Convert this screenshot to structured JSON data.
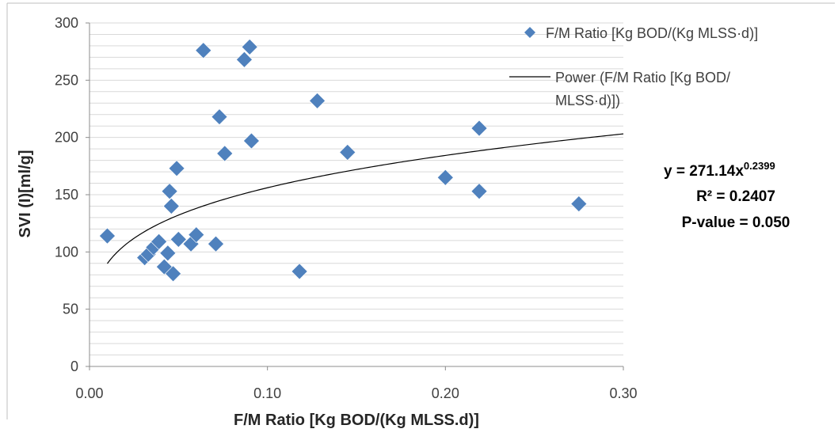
{
  "chart_data": {
    "type": "scatter",
    "xlabel": "F/M Ratio [Kg BOD/(Kg MLSS.d)]",
    "ylabel": "SVI (I)[ml/g]",
    "xlim": [
      0,
      0.3
    ],
    "ylim": [
      0,
      300
    ],
    "x_ticks": [
      "0.00",
      "0.10",
      "0.20",
      "0.30"
    ],
    "y_ticks": [
      "0",
      "50",
      "100",
      "150",
      "200",
      "250",
      "300"
    ],
    "y_minor_step": 10,
    "grid": "horizontal",
    "legend_position": "top-right",
    "series": [
      {
        "name": "F/M Ratio [Kg BOD/(Kg MLSS·d)]",
        "marker": "diamond",
        "color": "#4f81bd",
        "points": [
          [
            0.01,
            114
          ],
          [
            0.031,
            95
          ],
          [
            0.033,
            98
          ],
          [
            0.036,
            104
          ],
          [
            0.039,
            109
          ],
          [
            0.042,
            87
          ],
          [
            0.044,
            99
          ],
          [
            0.045,
            153
          ],
          [
            0.046,
            140
          ],
          [
            0.047,
            81
          ],
          [
            0.049,
            173
          ],
          [
            0.05,
            111
          ],
          [
            0.057,
            107
          ],
          [
            0.06,
            115
          ],
          [
            0.064,
            276
          ],
          [
            0.071,
            107
          ],
          [
            0.073,
            218
          ],
          [
            0.076,
            186
          ],
          [
            0.087,
            268
          ],
          [
            0.09,
            279
          ],
          [
            0.091,
            197
          ],
          [
            0.118,
            83
          ],
          [
            0.128,
            232
          ],
          [
            0.145,
            187
          ],
          [
            0.2,
            165
          ],
          [
            0.219,
            153
          ],
          [
            0.219,
            208
          ],
          [
            0.275,
            142
          ]
        ]
      },
      {
        "name": "Power (F/M Ratio [Kg BOD/(Kg MLSS·d)])",
        "type": "trendline",
        "model": "power",
        "a": 271.14,
        "b": 0.2399,
        "x_range": [
          0.01,
          0.3
        ],
        "color": "#000000"
      }
    ],
    "annotations": [
      "y = 271.14x",
      "0.2399",
      "R² = 0.2407",
      "P-value = 0.050"
    ]
  }
}
